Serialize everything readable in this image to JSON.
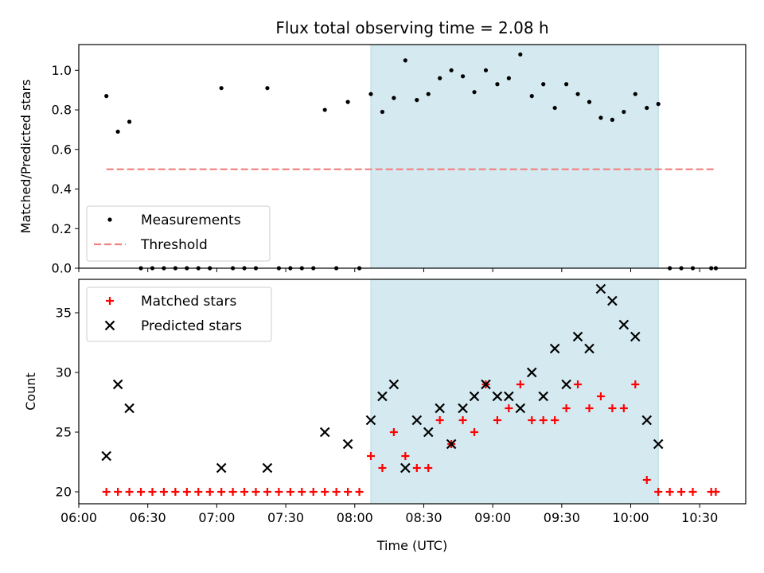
{
  "chart_data": [
    {
      "type": "scatter",
      "title": "Flux total observing time = 2.08 h",
      "xlabel": "",
      "ylabel": "Matched/Predicted stars",
      "ylim": [
        0,
        1.13
      ],
      "yticks": [
        "0.0",
        "0.2",
        "0.4",
        "0.6",
        "0.8",
        "1.0"
      ],
      "xlim": [
        "06:00",
        "10:50"
      ],
      "grid": false,
      "legend_position": "lower-left",
      "highlight_span": {
        "start": "08:07",
        "end": "10:12",
        "color": "#d4eaf0"
      },
      "series": [
        {
          "name": "Measurements",
          "marker": "dot",
          "color": "#000000",
          "points": [
            [
              "06:12",
              0.87
            ],
            [
              "06:17",
              0.69
            ],
            [
              "06:22",
              0.74
            ],
            [
              "06:27",
              0.0
            ],
            [
              "06:32",
              0.0
            ],
            [
              "06:37",
              0.0
            ],
            [
              "06:42",
              0.0
            ],
            [
              "06:47",
              0.0
            ],
            [
              "06:52",
              0.0
            ],
            [
              "06:57",
              0.0
            ],
            [
              "07:02",
              0.91
            ],
            [
              "07:07",
              0.0
            ],
            [
              "07:12",
              0.0
            ],
            [
              "07:17",
              0.0
            ],
            [
              "07:22",
              0.91
            ],
            [
              "07:27",
              0.0
            ],
            [
              "07:32",
              0.0
            ],
            [
              "07:37",
              0.0
            ],
            [
              "07:42",
              0.0
            ],
            [
              "07:47",
              0.8
            ],
            [
              "07:52",
              0.0
            ],
            [
              "07:57",
              0.84
            ],
            [
              "08:02",
              0.0
            ],
            [
              "08:07",
              0.88
            ],
            [
              "08:12",
              0.79
            ],
            [
              "08:17",
              0.86
            ],
            [
              "08:22",
              1.05
            ],
            [
              "08:27",
              0.85
            ],
            [
              "08:32",
              0.88
            ],
            [
              "08:37",
              0.96
            ],
            [
              "08:42",
              1.0
            ],
            [
              "08:47",
              0.97
            ],
            [
              "08:52",
              0.89
            ],
            [
              "08:57",
              1.0
            ],
            [
              "09:02",
              0.93
            ],
            [
              "09:07",
              0.96
            ],
            [
              "09:12",
              1.08
            ],
            [
              "09:17",
              0.87
            ],
            [
              "09:22",
              0.93
            ],
            [
              "09:27",
              0.81
            ],
            [
              "09:32",
              0.93
            ],
            [
              "09:37",
              0.88
            ],
            [
              "09:42",
              0.84
            ],
            [
              "09:47",
              0.76
            ],
            [
              "09:52",
              0.75
            ],
            [
              "09:57",
              0.79
            ],
            [
              "10:02",
              0.88
            ],
            [
              "10:07",
              0.81
            ],
            [
              "10:12",
              0.83
            ],
            [
              "10:17",
              0.0
            ],
            [
              "10:22",
              0.0
            ],
            [
              "10:27",
              0.0
            ],
            [
              "10:35",
              0.0
            ],
            [
              "10:37",
              0.0
            ]
          ]
        },
        {
          "name": "Threshold",
          "line_style": "dashed",
          "color": "#f08080",
          "points": [
            [
              "06:12",
              0.5
            ],
            [
              "10:37",
              0.5
            ]
          ]
        }
      ]
    },
    {
      "type": "scatter",
      "title": "",
      "xlabel": "Time (UTC)",
      "ylabel": "Count",
      "ylim": [
        19,
        37.8
      ],
      "yticks": [
        "20",
        "25",
        "30",
        "35"
      ],
      "xlim": [
        "06:00",
        "10:50"
      ],
      "xticks": [
        "06:00",
        "06:30",
        "07:00",
        "07:30",
        "08:00",
        "08:30",
        "09:00",
        "09:30",
        "10:00",
        "10:30"
      ],
      "grid": false,
      "legend_position": "upper-left",
      "highlight_span": {
        "start": "08:07",
        "end": "10:12",
        "color": "#d4eaf0"
      },
      "series": [
        {
          "name": "Matched stars",
          "marker": "plus",
          "color": "#ff0000",
          "points": [
            [
              "06:12",
              20
            ],
            [
              "06:17",
              20
            ],
            [
              "06:22",
              20
            ],
            [
              "06:27",
              20
            ],
            [
              "06:32",
              20
            ],
            [
              "06:37",
              20
            ],
            [
              "06:42",
              20
            ],
            [
              "06:47",
              20
            ],
            [
              "06:52",
              20
            ],
            [
              "06:57",
              20
            ],
            [
              "07:02",
              20
            ],
            [
              "07:07",
              20
            ],
            [
              "07:12",
              20
            ],
            [
              "07:17",
              20
            ],
            [
              "07:22",
              20
            ],
            [
              "07:27",
              20
            ],
            [
              "07:32",
              20
            ],
            [
              "07:37",
              20
            ],
            [
              "07:42",
              20
            ],
            [
              "07:47",
              20
            ],
            [
              "07:52",
              20
            ],
            [
              "07:57",
              20
            ],
            [
              "08:02",
              20
            ],
            [
              "08:07",
              23
            ],
            [
              "08:12",
              22
            ],
            [
              "08:17",
              25
            ],
            [
              "08:22",
              23
            ],
            [
              "08:27",
              22
            ],
            [
              "08:32",
              22
            ],
            [
              "08:37",
              26
            ],
            [
              "08:42",
              24
            ],
            [
              "08:47",
              26
            ],
            [
              "08:52",
              25
            ],
            [
              "08:57",
              29
            ],
            [
              "09:02",
              26
            ],
            [
              "09:07",
              27
            ],
            [
              "09:12",
              29
            ],
            [
              "09:17",
              26
            ],
            [
              "09:22",
              26
            ],
            [
              "09:27",
              26
            ],
            [
              "09:32",
              27
            ],
            [
              "09:37",
              29
            ],
            [
              "09:42",
              27
            ],
            [
              "09:47",
              28
            ],
            [
              "09:52",
              27
            ],
            [
              "09:57",
              27
            ],
            [
              "10:02",
              29
            ],
            [
              "10:07",
              21
            ],
            [
              "10:12",
              20
            ],
            [
              "10:17",
              20
            ],
            [
              "10:22",
              20
            ],
            [
              "10:27",
              20
            ],
            [
              "10:35",
              20
            ],
            [
              "10:37",
              20
            ]
          ]
        },
        {
          "name": "Predicted stars",
          "marker": "x",
          "color": "#000000",
          "points": [
            [
              "06:12",
              23
            ],
            [
              "06:17",
              29
            ],
            [
              "06:22",
              27
            ],
            [
              "07:02",
              22
            ],
            [
              "07:22",
              22
            ],
            [
              "07:47",
              25
            ],
            [
              "07:57",
              24
            ],
            [
              "08:07",
              26
            ],
            [
              "08:12",
              28
            ],
            [
              "08:17",
              29
            ],
            [
              "08:22",
              22
            ],
            [
              "08:27",
              26
            ],
            [
              "08:32",
              25
            ],
            [
              "08:37",
              27
            ],
            [
              "08:42",
              24
            ],
            [
              "08:47",
              27
            ],
            [
              "08:52",
              28
            ],
            [
              "08:57",
              29
            ],
            [
              "09:02",
              28
            ],
            [
              "09:07",
              28
            ],
            [
              "09:12",
              27
            ],
            [
              "09:17",
              30
            ],
            [
              "09:22",
              28
            ],
            [
              "09:27",
              32
            ],
            [
              "09:32",
              29
            ],
            [
              "09:37",
              33
            ],
            [
              "09:42",
              32
            ],
            [
              "09:47",
              37
            ],
            [
              "09:52",
              36
            ],
            [
              "09:57",
              34
            ],
            [
              "10:02",
              33
            ],
            [
              "10:07",
              26
            ],
            [
              "10:12",
              24
            ]
          ]
        }
      ]
    }
  ]
}
